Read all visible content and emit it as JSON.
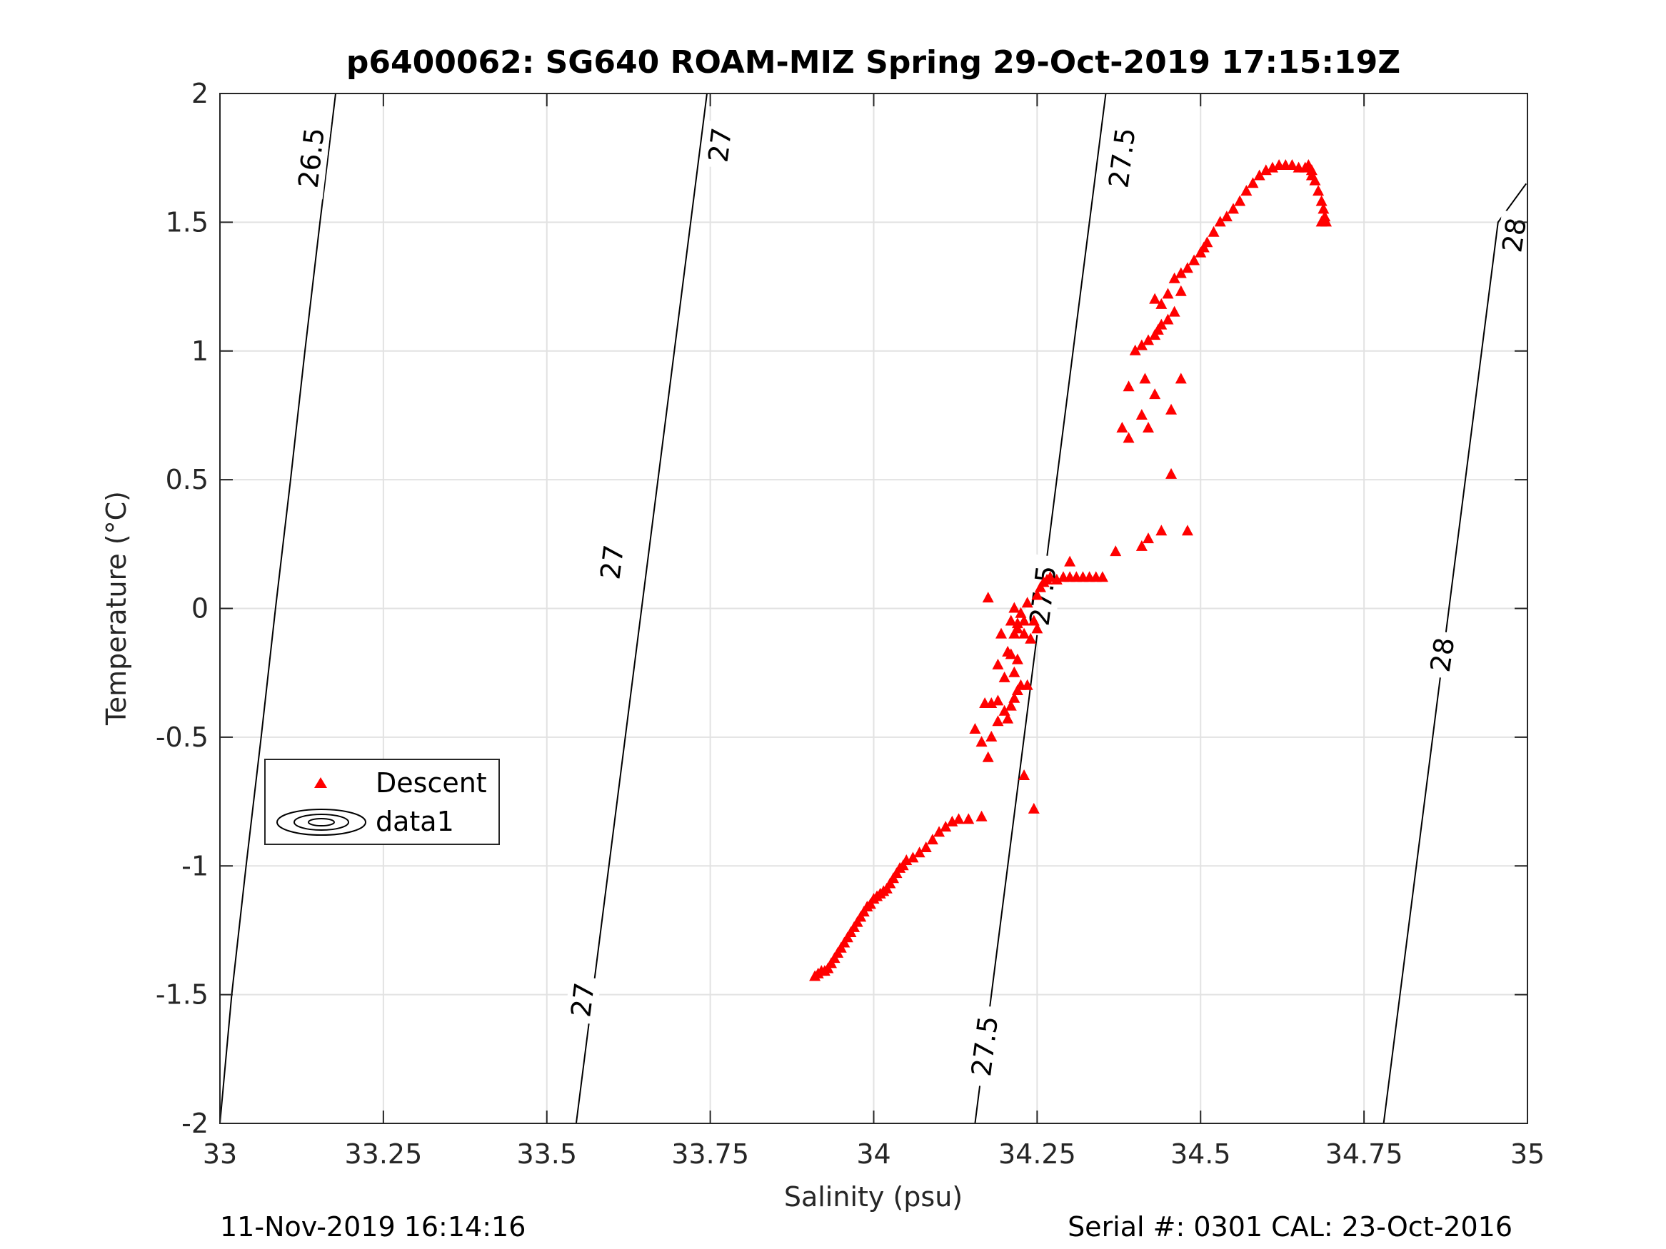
{
  "chart_data": {
    "type": "scatter",
    "title": "p6400062: SG640 ROAM-MIZ Spring 29-Oct-2019 17:15:19Z",
    "xlabel": "Salinity (psu)",
    "ylabel": "Temperature (°C)",
    "xlim": [
      33,
      35
    ],
    "ylim": [
      -2,
      2
    ],
    "grid": true,
    "xticks": [
      33,
      33.25,
      33.5,
      33.75,
      34,
      34.25,
      34.5,
      34.75,
      35
    ],
    "xtick_labels": [
      "33",
      "33.25",
      "33.5",
      "33.75",
      "34",
      "34.25",
      "34.5",
      "34.75",
      "35"
    ],
    "yticks": [
      -2,
      -1.5,
      -1,
      -0.5,
      0,
      0.5,
      1,
      1.5,
      2
    ],
    "ytick_labels": [
      "-2",
      "-1.5",
      "-1",
      "-0.5",
      "0",
      "0.5",
      "1",
      "1.5",
      "2"
    ],
    "legend": {
      "location": "center-left",
      "entries": [
        {
          "label": "Descent",
          "marker": "triangle",
          "color": "#ff0000"
        },
        {
          "label": "data1",
          "marker": "contour",
          "color": "#000000"
        }
      ]
    },
    "contours": [
      {
        "level": "26.5",
        "points": [
          [
            32.995,
            -2.0
          ],
          [
            33.018,
            -1.5
          ],
          [
            33.04,
            -1.0
          ],
          [
            33.063,
            -0.5
          ],
          [
            33.085,
            0.0
          ],
          [
            33.108,
            0.5
          ],
          [
            33.13,
            1.0
          ],
          [
            33.153,
            1.5
          ],
          [
            33.165,
            1.75
          ],
          [
            33.177,
            2.0
          ]
        ],
        "labels": [
          {
            "text": "26.5",
            "s": 33.14,
            "t": 1.75
          }
        ]
      },
      {
        "level": "27",
        "points": [
          [
            33.545,
            -2.0
          ],
          [
            33.57,
            -1.5
          ],
          [
            33.595,
            -1.0
          ],
          [
            33.62,
            -0.5
          ],
          [
            33.645,
            0.0
          ],
          [
            33.67,
            0.5
          ],
          [
            33.695,
            1.0
          ],
          [
            33.72,
            1.5
          ],
          [
            33.745,
            2.0
          ]
        ],
        "labels": [
          {
            "text": "27",
            "s": 33.6,
            "t": 0.18
          },
          {
            "text": "27",
            "s": 33.555,
            "t": -1.52
          },
          {
            "text": "27",
            "s": 33.765,
            "t": 1.8
          }
        ]
      },
      {
        "level": "27.5",
        "points": [
          [
            34.155,
            -2.0
          ],
          [
            34.18,
            -1.5
          ],
          [
            34.205,
            -1.0
          ],
          [
            34.23,
            -0.5
          ],
          [
            34.255,
            0.0
          ],
          [
            34.28,
            0.5
          ],
          [
            34.305,
            1.0
          ],
          [
            34.33,
            1.5
          ],
          [
            34.355,
            2.0
          ]
        ],
        "labels": [
          {
            "text": "27.5",
            "s": 34.17,
            "t": -1.7
          },
          {
            "text": "27.5",
            "s": 34.259,
            "t": 0.05
          },
          {
            "text": "27.5",
            "s": 34.38,
            "t": 1.75
          }
        ]
      },
      {
        "level": "28",
        "points": [
          [
            34.78,
            -2.0
          ],
          [
            34.805,
            -1.5
          ],
          [
            34.83,
            -1.0
          ],
          [
            34.855,
            -0.5
          ],
          [
            34.88,
            0.0
          ],
          [
            34.905,
            0.5
          ],
          [
            34.93,
            1.0
          ],
          [
            34.955,
            1.5
          ],
          [
            34.998,
            1.65
          ]
        ],
        "labels": [
          {
            "text": "28",
            "s": 34.87,
            "t": -0.18
          },
          {
            "text": "28",
            "s": 34.98,
            "t": 1.45
          }
        ]
      }
    ],
    "series": [
      {
        "name": "Descent",
        "marker": "triangle",
        "color": "#ff0000",
        "points": [
          [
            33.91,
            -1.43
          ],
          [
            33.915,
            -1.42
          ],
          [
            33.92,
            -1.41
          ],
          [
            33.925,
            -1.41
          ],
          [
            33.93,
            -1.4
          ],
          [
            33.935,
            -1.38
          ],
          [
            33.94,
            -1.36
          ],
          [
            33.945,
            -1.34
          ],
          [
            33.95,
            -1.32
          ],
          [
            33.955,
            -1.3
          ],
          [
            33.96,
            -1.28
          ],
          [
            33.965,
            -1.26
          ],
          [
            33.97,
            -1.24
          ],
          [
            33.975,
            -1.22
          ],
          [
            33.98,
            -1.2
          ],
          [
            33.985,
            -1.18
          ],
          [
            33.99,
            -1.16
          ],
          [
            33.995,
            -1.15
          ],
          [
            34.0,
            -1.13
          ],
          [
            34.005,
            -1.12
          ],
          [
            34.01,
            -1.11
          ],
          [
            34.015,
            -1.1
          ],
          [
            34.02,
            -1.09
          ],
          [
            34.025,
            -1.07
          ],
          [
            34.03,
            -1.05
          ],
          [
            34.035,
            -1.03
          ],
          [
            34.04,
            -1.01
          ],
          [
            34.045,
            -1.0
          ],
          [
            34.05,
            -0.98
          ],
          [
            34.06,
            -0.97
          ],
          [
            34.07,
            -0.95
          ],
          [
            34.08,
            -0.93
          ],
          [
            34.09,
            -0.9
          ],
          [
            34.1,
            -0.87
          ],
          [
            34.11,
            -0.85
          ],
          [
            34.12,
            -0.83
          ],
          [
            34.13,
            -0.82
          ],
          [
            34.145,
            -0.82
          ],
          [
            34.165,
            -0.81
          ],
          [
            34.155,
            -0.47
          ],
          [
            34.165,
            -0.52
          ],
          [
            34.175,
            -0.58
          ],
          [
            34.18,
            -0.5
          ],
          [
            34.19,
            -0.44
          ],
          [
            34.2,
            -0.4
          ],
          [
            34.205,
            -0.43
          ],
          [
            34.21,
            -0.38
          ],
          [
            34.215,
            -0.35
          ],
          [
            34.22,
            -0.32
          ],
          [
            34.225,
            -0.3
          ],
          [
            34.215,
            -0.25
          ],
          [
            34.22,
            -0.2
          ],
          [
            34.21,
            -0.18
          ],
          [
            34.205,
            -0.17
          ],
          [
            34.215,
            -0.1
          ],
          [
            34.22,
            -0.06
          ],
          [
            34.23,
            -0.05
          ],
          [
            34.225,
            -0.02
          ],
          [
            34.215,
            0.0
          ],
          [
            34.21,
            -0.05
          ],
          [
            34.22,
            -0.08
          ],
          [
            34.23,
            -0.1
          ],
          [
            34.24,
            -0.12
          ],
          [
            34.25,
            -0.08
          ],
          [
            34.245,
            -0.05
          ],
          [
            34.235,
            0.02
          ],
          [
            34.25,
            0.05
          ],
          [
            34.255,
            0.08
          ],
          [
            34.26,
            0.1
          ],
          [
            34.265,
            0.11
          ],
          [
            34.27,
            0.12
          ],
          [
            34.28,
            0.11
          ],
          [
            34.29,
            0.12
          ],
          [
            34.3,
            0.12
          ],
          [
            34.31,
            0.12
          ],
          [
            34.32,
            0.12
          ],
          [
            34.33,
            0.12
          ],
          [
            34.34,
            0.12
          ],
          [
            34.35,
            0.12
          ],
          [
            34.3,
            0.18
          ],
          [
            34.37,
            0.22
          ],
          [
            34.41,
            0.24
          ],
          [
            34.42,
            0.27
          ],
          [
            34.44,
            0.3
          ],
          [
            34.245,
            -0.78
          ],
          [
            34.235,
            -0.3
          ],
          [
            34.18,
            -0.37
          ],
          [
            34.19,
            -0.36
          ],
          [
            34.17,
            -0.37
          ],
          [
            34.175,
            0.04
          ],
          [
            34.23,
            -0.65
          ],
          [
            34.2,
            -0.27
          ],
          [
            34.19,
            -0.22
          ],
          [
            34.195,
            -0.1
          ],
          [
            34.48,
            0.3
          ],
          [
            34.455,
            0.52
          ],
          [
            34.38,
            0.7
          ],
          [
            34.39,
            0.66
          ],
          [
            34.41,
            0.75
          ],
          [
            34.42,
            0.7
          ],
          [
            34.455,
            0.77
          ],
          [
            34.43,
            0.83
          ],
          [
            34.39,
            0.86
          ],
          [
            34.415,
            0.89
          ],
          [
            34.47,
            0.89
          ],
          [
            34.4,
            1.0
          ],
          [
            34.41,
            1.02
          ],
          [
            34.42,
            1.04
          ],
          [
            34.43,
            1.06
          ],
          [
            34.435,
            1.08
          ],
          [
            34.44,
            1.1
          ],
          [
            34.45,
            1.12
          ],
          [
            34.46,
            1.15
          ],
          [
            34.44,
            1.18
          ],
          [
            34.43,
            1.2
          ],
          [
            34.47,
            1.23
          ],
          [
            34.45,
            1.22
          ],
          [
            34.46,
            1.28
          ],
          [
            34.47,
            1.3
          ],
          [
            34.48,
            1.32
          ],
          [
            34.49,
            1.35
          ],
          [
            34.5,
            1.38
          ],
          [
            34.505,
            1.4
          ],
          [
            34.51,
            1.42
          ],
          [
            34.52,
            1.46
          ],
          [
            34.53,
            1.5
          ],
          [
            34.54,
            1.52
          ],
          [
            34.55,
            1.55
          ],
          [
            34.56,
            1.58
          ],
          [
            34.57,
            1.62
          ],
          [
            34.58,
            1.65
          ],
          [
            34.59,
            1.68
          ],
          [
            34.6,
            1.7
          ],
          [
            34.61,
            1.71
          ],
          [
            34.62,
            1.72
          ],
          [
            34.63,
            1.72
          ],
          [
            34.64,
            1.72
          ],
          [
            34.65,
            1.71
          ],
          [
            34.66,
            1.71
          ],
          [
            34.665,
            1.72
          ],
          [
            34.67,
            1.7
          ],
          [
            34.675,
            1.66
          ],
          [
            34.68,
            1.62
          ],
          [
            34.685,
            1.58
          ],
          [
            34.688,
            1.55
          ],
          [
            34.69,
            1.52
          ],
          [
            34.692,
            1.5
          ],
          [
            34.685,
            1.5
          ],
          [
            34.67,
            1.68
          ]
        ]
      }
    ]
  },
  "footer": {
    "timestamp": "11-Nov-2019 16:14:16",
    "serial_cal": "Serial #: 0301  CAL: 23-Oct-2016"
  }
}
